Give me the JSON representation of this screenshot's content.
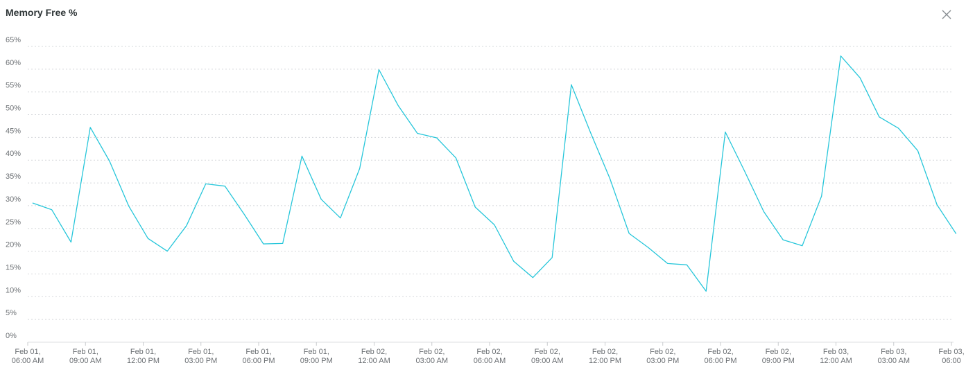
{
  "panel": {
    "title": "Memory Free %",
    "close_icon": "close-icon"
  },
  "chart_data": {
    "type": "line",
    "title": "Memory Free %",
    "xlabel": "",
    "ylabel": "",
    "ylim": [
      0,
      65
    ],
    "y_ticks": [
      0,
      5,
      10,
      15,
      20,
      25,
      30,
      35,
      40,
      45,
      50,
      55,
      60,
      65
    ],
    "y_tick_labels": [
      "0%",
      "5%",
      "10%",
      "15%",
      "20%",
      "25%",
      "30%",
      "35%",
      "40%",
      "45%",
      "50%",
      "55%",
      "60%",
      "65%"
    ],
    "xlim": [
      "Feb 01, 06:00 AM",
      "Feb 03, 06:00 AM"
    ],
    "x_ticks": [
      {
        "line1": "Feb 01,",
        "line2": "06:00 AM",
        "hours": 0
      },
      {
        "line1": "Feb 01,",
        "line2": "09:00 AM",
        "hours": 3
      },
      {
        "line1": "Feb 01,",
        "line2": "12:00 PM",
        "hours": 6
      },
      {
        "line1": "Feb 01,",
        "line2": "03:00 PM",
        "hours": 9
      },
      {
        "line1": "Feb 01,",
        "line2": "06:00 PM",
        "hours": 12
      },
      {
        "line1": "Feb 01,",
        "line2": "09:00 PM",
        "hours": 15
      },
      {
        "line1": "Feb 02,",
        "line2": "12:00 AM",
        "hours": 18
      },
      {
        "line1": "Feb 02,",
        "line2": "03:00 AM",
        "hours": 21
      },
      {
        "line1": "Feb 02,",
        "line2": "06:00 AM",
        "hours": 24
      },
      {
        "line1": "Feb 02,",
        "line2": "09:00 AM",
        "hours": 27
      },
      {
        "line1": "Feb 02,",
        "line2": "12:00 PM",
        "hours": 30
      },
      {
        "line1": "Feb 02,",
        "line2": "03:00 PM",
        "hours": 33
      },
      {
        "line1": "Feb 02,",
        "line2": "06:00 PM",
        "hours": 36
      },
      {
        "line1": "Feb 02,",
        "line2": "09:00 PM",
        "hours": 39
      },
      {
        "line1": "Feb 03,",
        "line2": "12:00 AM",
        "hours": 42
      },
      {
        "line1": "Feb 03,",
        "line2": "03:00 AM",
        "hours": 45
      },
      {
        "line1": "Feb 03,",
        "line2": "06:00",
        "hours": 48
      }
    ],
    "grid": true,
    "legend": "none",
    "series": [
      {
        "color": "#26c6da",
        "points": [
          {
            "hours": 0.25,
            "y": 30.6
          },
          {
            "hours": 1.25,
            "y": 29.1
          },
          {
            "hours": 2.25,
            "y": 22.0
          },
          {
            "hours": 3.25,
            "y": 47.2
          },
          {
            "hours": 4.25,
            "y": 39.8
          },
          {
            "hours": 5.25,
            "y": 29.9
          },
          {
            "hours": 6.25,
            "y": 22.8
          },
          {
            "hours": 7.25,
            "y": 20.0
          },
          {
            "hours": 8.25,
            "y": 25.6
          },
          {
            "hours": 9.25,
            "y": 34.8
          },
          {
            "hours": 10.25,
            "y": 34.3
          },
          {
            "hours": 11.25,
            "y": 28.1
          },
          {
            "hours": 12.25,
            "y": 21.6
          },
          {
            "hours": 13.25,
            "y": 21.7
          },
          {
            "hours": 14.25,
            "y": 40.9
          },
          {
            "hours": 15.25,
            "y": 31.4
          },
          {
            "hours": 16.25,
            "y": 27.3
          },
          {
            "hours": 17.25,
            "y": 38.2
          },
          {
            "hours": 18.25,
            "y": 59.9
          },
          {
            "hours": 19.25,
            "y": 52.0
          },
          {
            "hours": 20.25,
            "y": 45.9
          },
          {
            "hours": 21.25,
            "y": 44.9
          },
          {
            "hours": 22.25,
            "y": 40.5
          },
          {
            "hours": 23.25,
            "y": 29.7
          },
          {
            "hours": 24.25,
            "y": 25.8
          },
          {
            "hours": 25.25,
            "y": 17.8
          },
          {
            "hours": 26.25,
            "y": 14.2
          },
          {
            "hours": 27.25,
            "y": 18.6
          },
          {
            "hours": 28.25,
            "y": 56.6
          },
          {
            "hours": 29.25,
            "y": 46.0
          },
          {
            "hours": 30.25,
            "y": 36.0
          },
          {
            "hours": 31.25,
            "y": 23.9
          },
          {
            "hours": 32.25,
            "y": 20.8
          },
          {
            "hours": 33.25,
            "y": 17.3
          },
          {
            "hours": 34.25,
            "y": 17.0
          },
          {
            "hours": 35.25,
            "y": 11.2
          },
          {
            "hours": 36.25,
            "y": 46.2
          },
          {
            "hours": 37.25,
            "y": 37.6
          },
          {
            "hours": 38.25,
            "y": 28.7
          },
          {
            "hours": 39.25,
            "y": 22.5
          },
          {
            "hours": 40.25,
            "y": 21.2
          },
          {
            "hours": 41.25,
            "y": 32.1
          },
          {
            "hours": 42.25,
            "y": 62.9
          },
          {
            "hours": 43.25,
            "y": 58.1
          },
          {
            "hours": 44.25,
            "y": 49.5
          },
          {
            "hours": 45.25,
            "y": 47.0
          },
          {
            "hours": 46.25,
            "y": 42.1
          },
          {
            "hours": 47.25,
            "y": 30.2
          },
          {
            "hours": 48.25,
            "y": 23.8
          }
        ]
      }
    ]
  }
}
